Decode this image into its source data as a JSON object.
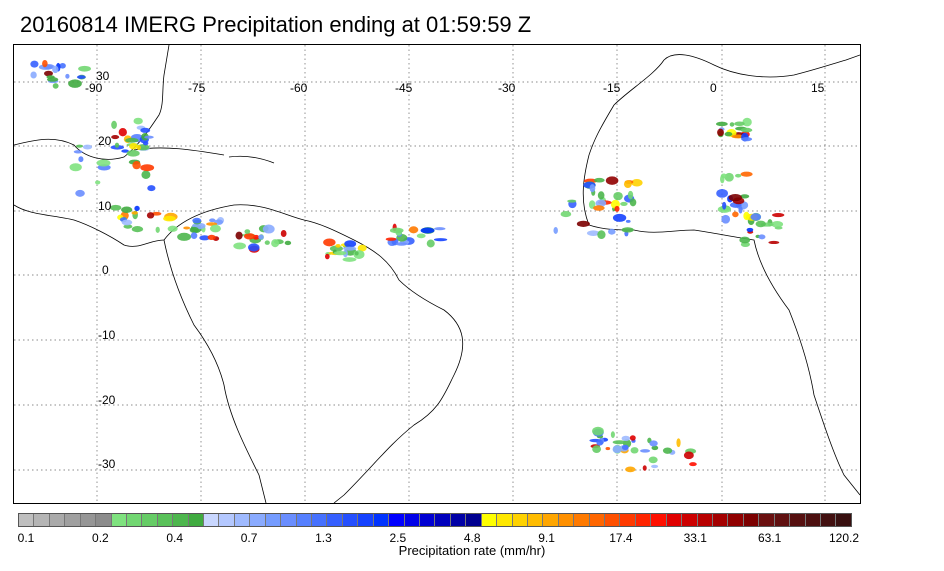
{
  "title": "20160814 IMERG Precipitation ending at 01:59:59 Z",
  "map": {
    "lon_labels": [
      "-90",
      "-75",
      "-60",
      "-45",
      "-30",
      "-15",
      "0",
      "15"
    ],
    "lat_labels": [
      "30",
      "20",
      "10",
      "0",
      "-10",
      "-20",
      "-30"
    ],
    "grid": "dotted"
  },
  "colorbar": {
    "tick_labels": [
      "0.1",
      "0.2",
      "0.4",
      "0.7",
      "1.3",
      "2.5",
      "4.8",
      "9.1",
      "17.4",
      "33.1",
      "63.1",
      "120.2"
    ],
    "label": "Precipitation rate (mm/hr)",
    "colors": [
      "#bfbfbf",
      "#b5b5b5",
      "#aaaaaa",
      "#a0a0a0",
      "#969696",
      "#8c8c8c",
      "#7fe27f",
      "#72d772",
      "#66cc66",
      "#59c159",
      "#4db64d",
      "#40ab40",
      "#c9d7ff",
      "#b4c8ff",
      "#9fbaff",
      "#8aabff",
      "#759cff",
      "#6a8eff",
      "#5680ff",
      "#4671ff",
      "#3660ff",
      "#2550ff",
      "#1542ff",
      "#0033ff",
      "#0000ff",
      "#0000e8",
      "#0000d2",
      "#0000bc",
      "#0000a6",
      "#000090",
      "#ffff00",
      "#ffe800",
      "#ffd200",
      "#ffbc00",
      "#ffa600",
      "#ff9000",
      "#ff7a00",
      "#ff6600",
      "#ff5000",
      "#ff3a00",
      "#ff2400",
      "#ff1000",
      "#e00000",
      "#cc0000",
      "#b80000",
      "#a40000",
      "#900000",
      "#7c0000",
      "#6a1010",
      "#601010",
      "#561010",
      "#4c1010",
      "#421010",
      "#381010"
    ]
  }
}
